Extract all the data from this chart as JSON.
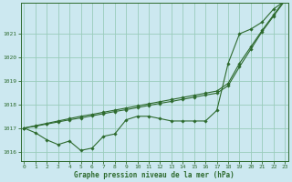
{
  "xlabel": "Graphe pression niveau de la mer (hPa)",
  "background_color": "#cce8f0",
  "grid_color": "#99ccbb",
  "line_color": "#2d6a2d",
  "x": [
    0,
    1,
    2,
    3,
    4,
    5,
    6,
    7,
    8,
    9,
    10,
    11,
    12,
    13,
    14,
    15,
    16,
    17,
    18,
    19,
    20,
    21,
    22,
    23
  ],
  "y_lower": [
    1017.0,
    1016.8,
    1016.5,
    1016.3,
    1016.45,
    1016.05,
    1016.15,
    1016.65,
    1016.75,
    1017.35,
    1017.5,
    1017.5,
    1017.4,
    1017.3,
    1017.3,
    1017.3,
    1017.3,
    1017.75,
    1019.75,
    1021.0,
    1021.2,
    1021.5,
    1022.05,
    1022.4
  ],
  "y_upper1": [
    1017.0,
    1017.08,
    1017.17,
    1017.26,
    1017.35,
    1017.43,
    1017.52,
    1017.61,
    1017.7,
    1017.78,
    1017.87,
    1017.96,
    1018.05,
    1018.13,
    1018.22,
    1018.31,
    1018.4,
    1018.48,
    1018.8,
    1019.6,
    1020.35,
    1021.1,
    1021.75,
    1022.4
  ],
  "y_upper2": [
    1017.0,
    1017.1,
    1017.2,
    1017.3,
    1017.4,
    1017.5,
    1017.58,
    1017.67,
    1017.76,
    1017.85,
    1017.94,
    1018.03,
    1018.12,
    1018.21,
    1018.3,
    1018.39,
    1018.48,
    1018.57,
    1018.9,
    1019.75,
    1020.45,
    1021.15,
    1021.8,
    1022.45
  ],
  "ylim": [
    1015.6,
    1022.3
  ],
  "yticks": [
    1016,
    1017,
    1018,
    1019,
    1020,
    1021
  ],
  "xlim": [
    -0.3,
    23.3
  ],
  "xticks": [
    0,
    1,
    2,
    3,
    4,
    5,
    6,
    7,
    8,
    9,
    10,
    11,
    12,
    13,
    14,
    15,
    16,
    17,
    18,
    19,
    20,
    21,
    22,
    23
  ],
  "figsize": [
    3.2,
    2.0
  ],
  "dpi": 100
}
